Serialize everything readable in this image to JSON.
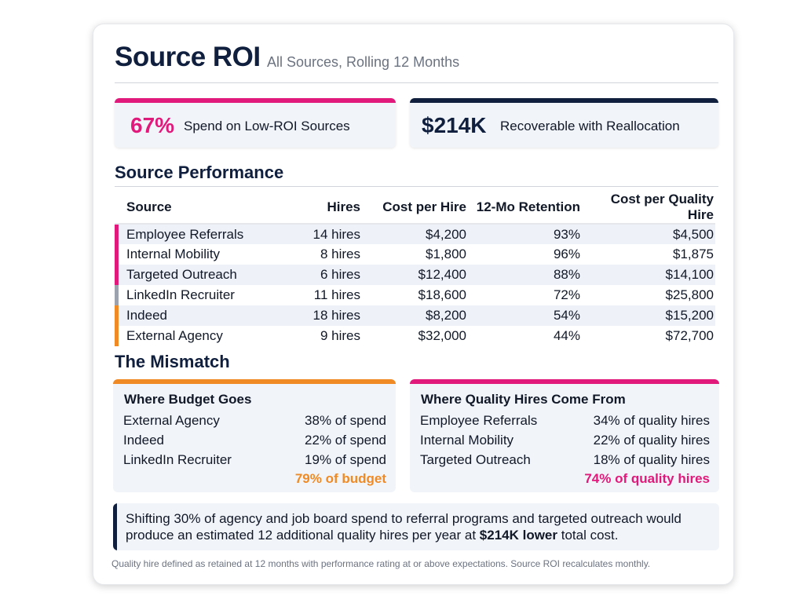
{
  "header": {
    "title": "Source ROI",
    "subtitle": "All Sources, Rolling 12 Months"
  },
  "kpis": [
    {
      "value": "67%",
      "label": "Spend on Low-ROI Sources",
      "color": "#e0197a"
    },
    {
      "value": "$214K",
      "label": "Recoverable with Reallocation",
      "color": "#0f1f3d"
    }
  ],
  "performance": {
    "title": "Source Performance",
    "columns": [
      "Source",
      "Hires",
      "Cost per Hire",
      "12-Mo Retention",
      "Cost per Quality Hire"
    ],
    "rows": [
      {
        "source": "Employee Referrals",
        "hires": "14 hires",
        "cph": "$4,200",
        "retention": "93%",
        "cpqh": "$4,500",
        "color": "#e0197a"
      },
      {
        "source": "Internal Mobility",
        "hires": "8 hires",
        "cph": "$1,800",
        "retention": "96%",
        "cpqh": "$1,875",
        "color": "#e0197a"
      },
      {
        "source": "Targeted Outreach",
        "hires": "6 hires",
        "cph": "$12,400",
        "retention": "88%",
        "cpqh": "$14,100",
        "color": "#e0197a"
      },
      {
        "source": "LinkedIn Recruiter",
        "hires": "11 hires",
        "cph": "$18,600",
        "retention": "72%",
        "cpqh": "$25,800",
        "color": "#9ca3af"
      },
      {
        "source": "Indeed",
        "hires": "18 hires",
        "cph": "$8,200",
        "retention": "54%",
        "cpqh": "$15,200",
        "color": "#f08a24"
      },
      {
        "source": "External Agency",
        "hires": "9 hires",
        "cph": "$32,000",
        "retention": "44%",
        "cpqh": "$72,700",
        "color": "#f08a24"
      }
    ]
  },
  "mismatch": {
    "title": "The Mismatch",
    "budget": {
      "heading": "Where Budget Goes",
      "color": "#f08a24",
      "items": [
        {
          "label": "External Agency",
          "value": "38% of spend"
        },
        {
          "label": "Indeed",
          "value": "22% of spend"
        },
        {
          "label": "LinkedIn Recruiter",
          "value": "19% of spend"
        }
      ],
      "total": "79% of budget"
    },
    "quality": {
      "heading": "Where Quality Hires Come From",
      "color": "#e0197a",
      "items": [
        {
          "label": "Employee Referrals",
          "value": "34% of quality hires"
        },
        {
          "label": "Internal Mobility",
          "value": "22% of quality hires"
        },
        {
          "label": "Targeted Outreach",
          "value": "18% of quality hires"
        }
      ],
      "total": "74% of quality hires"
    }
  },
  "callout": {
    "text_before": "Shifting 30% of agency and job board spend to referral programs and targeted outreach would produce an estimated 12 additional quality hires per year at ",
    "bold": "$214K lower",
    "text_after": " total cost."
  },
  "footnote": "Quality hire defined as retained at 12 months with performance rating at or above expectations. Source ROI recalculates monthly."
}
